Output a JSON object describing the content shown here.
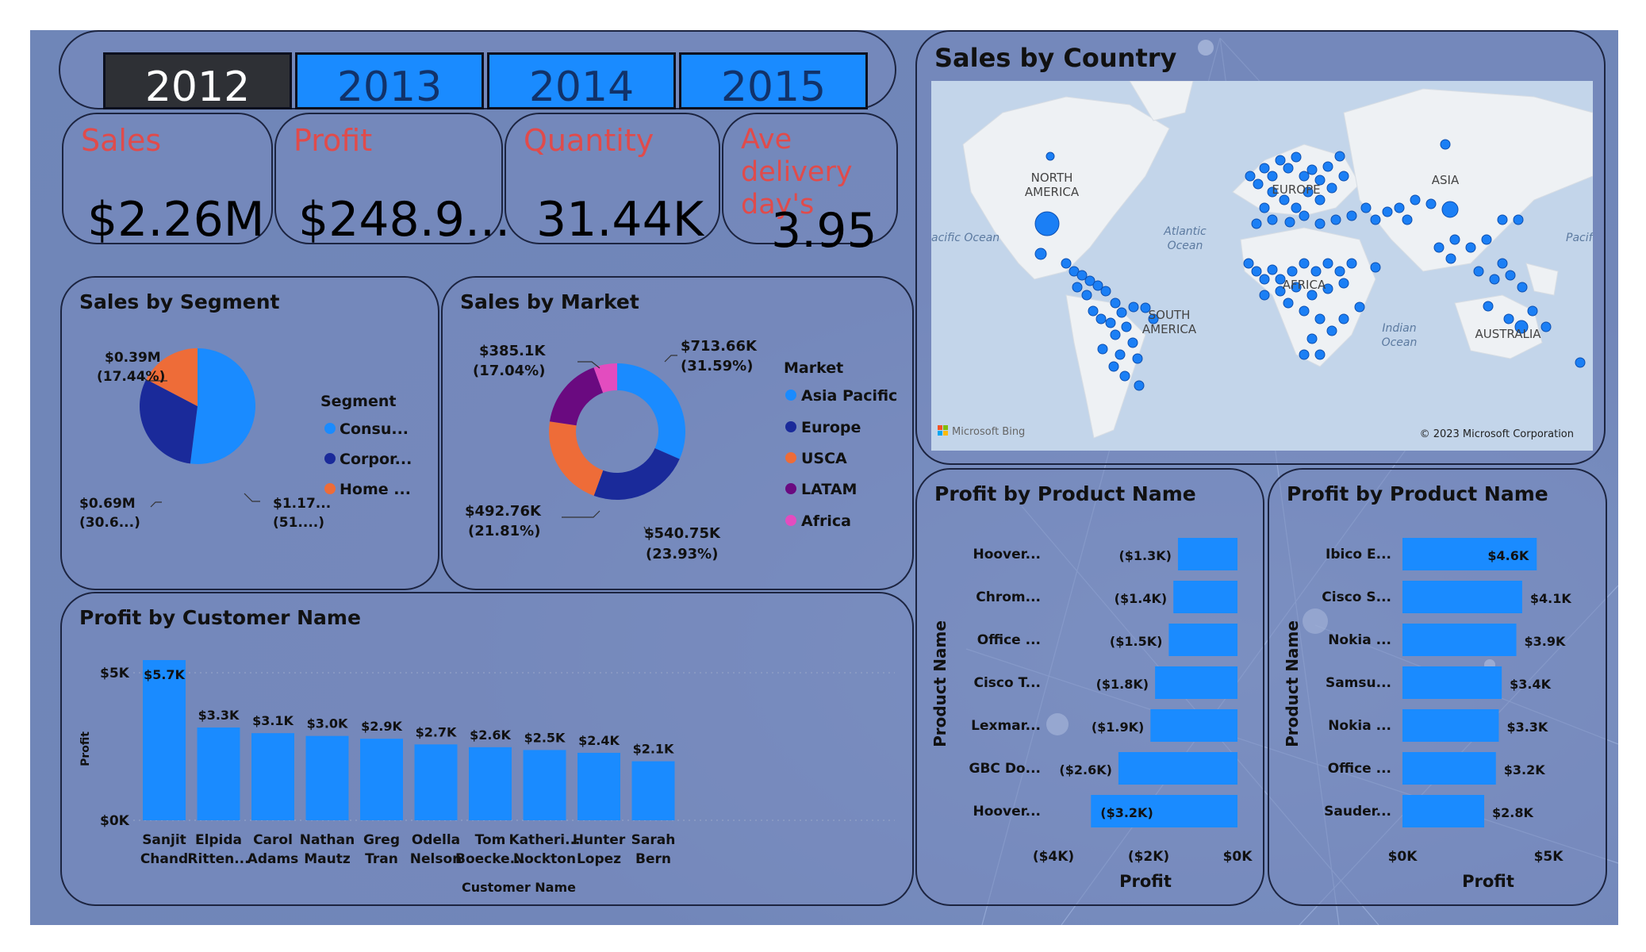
{
  "years": [
    "2012",
    "2013",
    "2014",
    "2015"
  ],
  "selected_year": "2012",
  "kpis": {
    "sales": {
      "label": "Sales",
      "value": "$2.26M"
    },
    "profit": {
      "label": "Profit",
      "value": "$248.9..."
    },
    "quantity": {
      "label": "Quantity",
      "value": "31.44K"
    },
    "delivery": {
      "label": "Ave delivery day's",
      "value": "3.95"
    }
  },
  "colors": {
    "accent": "#1a8bff",
    "kpi_label": "#e04b4b",
    "navy": "#1a2a9a",
    "orange": "#ee6c38",
    "purple": "#6a0a80",
    "pink": "#e34cbf",
    "panel_border": "#1c2440",
    "active_year": "#2e3035"
  },
  "segment": {
    "title": "Sales by Segment",
    "legend_title": "Segment",
    "legend": [
      "Consu...",
      "Corpor...",
      "Home ..."
    ],
    "labels": {
      "home": [
        "$0.39M",
        "(17.44%)"
      ],
      "corporate": [
        "$0.69M",
        "(30.6...)"
      ],
      "consumer": [
        "$1.17...",
        "(51....)"
      ]
    }
  },
  "market": {
    "title": "Sales by Market",
    "legend_title": "Market",
    "legend": [
      "Asia Pacific",
      "Europe",
      "USCA",
      "LATAM",
      "Africa"
    ],
    "labels": {
      "asia_pacific": [
        "$713.66K",
        "(31.59%)"
      ],
      "europe": [
        "$540.75K",
        "(23.93%)"
      ],
      "usca": [
        "$492.76K",
        "(21.81%)"
      ],
      "latam": [
        "$385.1K",
        "(17.04%)"
      ]
    }
  },
  "map": {
    "title": "Sales by Country",
    "continents": [
      "NORTH AMERICA",
      "EUROPE",
      "ASIA",
      "AFRICA",
      "SOUTH AMERICA",
      "AUSTRALIA"
    ],
    "oceans": {
      "pacific_left": "acific Ocean",
      "atlantic": "Atlantic Ocean",
      "indian": "Indian Ocean",
      "pacific_right": "Pacif"
    },
    "bing": "Microsoft Bing",
    "copyright": "© 2023 Microsoft Corporation"
  },
  "customer": {
    "title": "Profit by Customer Name",
    "y_axis_title": "Profit",
    "x_axis_title": "Customer Name",
    "y_ticks": [
      "$5K",
      "$0K"
    ]
  },
  "product_neg": {
    "title": "Profit by Product Name",
    "y_axis_title": "Product Name",
    "x_axis_title": "Profit",
    "x_ticks": [
      "($4K)",
      "($2K)",
      "$0K"
    ]
  },
  "product_pos": {
    "title": "Profit by Product Name",
    "y_axis_title": "Product Name",
    "x_axis_title": "Profit",
    "x_ticks": [
      "$0K",
      "$5K"
    ]
  },
  "chart_data": [
    {
      "type": "pie",
      "title": "Sales by Segment",
      "legend_title": "Segment",
      "categories": [
        "Consu...",
        "Corpor...",
        "Home ..."
      ],
      "values": [
        1.17,
        0.69,
        0.39
      ],
      "percents": [
        51.96,
        30.6,
        17.44
      ],
      "legend_position": "right"
    },
    {
      "type": "pie",
      "title": "Sales by Market",
      "legend_title": "Market",
      "categories": [
        "Asia Pacific",
        "Europe",
        "USCA",
        "LATAM",
        "Africa"
      ],
      "values": [
        713.66,
        540.75,
        492.76,
        385.1,
        126.0
      ],
      "percents": [
        31.59,
        23.93,
        21.81,
        17.04,
        5.63
      ],
      "legend_position": "right"
    },
    {
      "type": "bar",
      "title": "Profit by Customer Name",
      "categories": [
        "Sanjit Chand",
        "Elpida Ritten...",
        "Carol Adams",
        "Nathan Mautz",
        "Greg Tran",
        "Odella Nelson",
        "Tom Boecke...",
        "Katheri... Nockton",
        "Hunter Lopez",
        "Sarah Bern"
      ],
      "values": [
        5.7,
        3.3,
        3.1,
        3.0,
        2.9,
        2.7,
        2.6,
        2.5,
        2.4,
        2.1
      ],
      "data_labels": [
        "$5.7K",
        "$3.3K",
        "$3.1K",
        "$3.0K",
        "$2.9K",
        "$2.7K",
        "$2.6K",
        "$2.5K",
        "$2.4K",
        "$2.1K"
      ],
      "xlabel": "Customer Name",
      "ylabel": "Profit",
      "ylim": [
        0,
        5.7
      ]
    },
    {
      "type": "bar",
      "title": "Profit by Product Name",
      "categories": [
        "Hoover...",
        "Chrom...",
        "Office ...",
        "Cisco T...",
        "Lexmar...",
        "GBC Do...",
        "Hoover..."
      ],
      "values": [
        -1.3,
        -1.4,
        -1.5,
        -1.8,
        -1.9,
        -2.6,
        -3.2
      ],
      "data_labels": [
        "($1.3K)",
        "($1.4K)",
        "($1.5K)",
        "($1.8K)",
        "($1.9K)",
        "($2.6K)",
        "($3.2K)"
      ],
      "xlabel": "Profit",
      "ylabel": "Product Name",
      "xlim": [
        -4.4,
        0
      ]
    },
    {
      "type": "bar",
      "title": "Profit by Product Name",
      "categories": [
        "Ibico E...",
        "Cisco S...",
        "Nokia ...",
        "Samsu...",
        "Nokia ...",
        "Office ...",
        "Sauder..."
      ],
      "values": [
        4.6,
        4.1,
        3.9,
        3.4,
        3.3,
        3.2,
        2.8
      ],
      "data_labels": [
        "$4.6K",
        "$4.1K",
        "$3.9K",
        "$3.4K",
        "$3.3K",
        "$3.2K",
        "$2.8K"
      ],
      "xlabel": "Profit",
      "ylabel": "Product Name",
      "xlim": [
        0,
        5
      ]
    }
  ]
}
